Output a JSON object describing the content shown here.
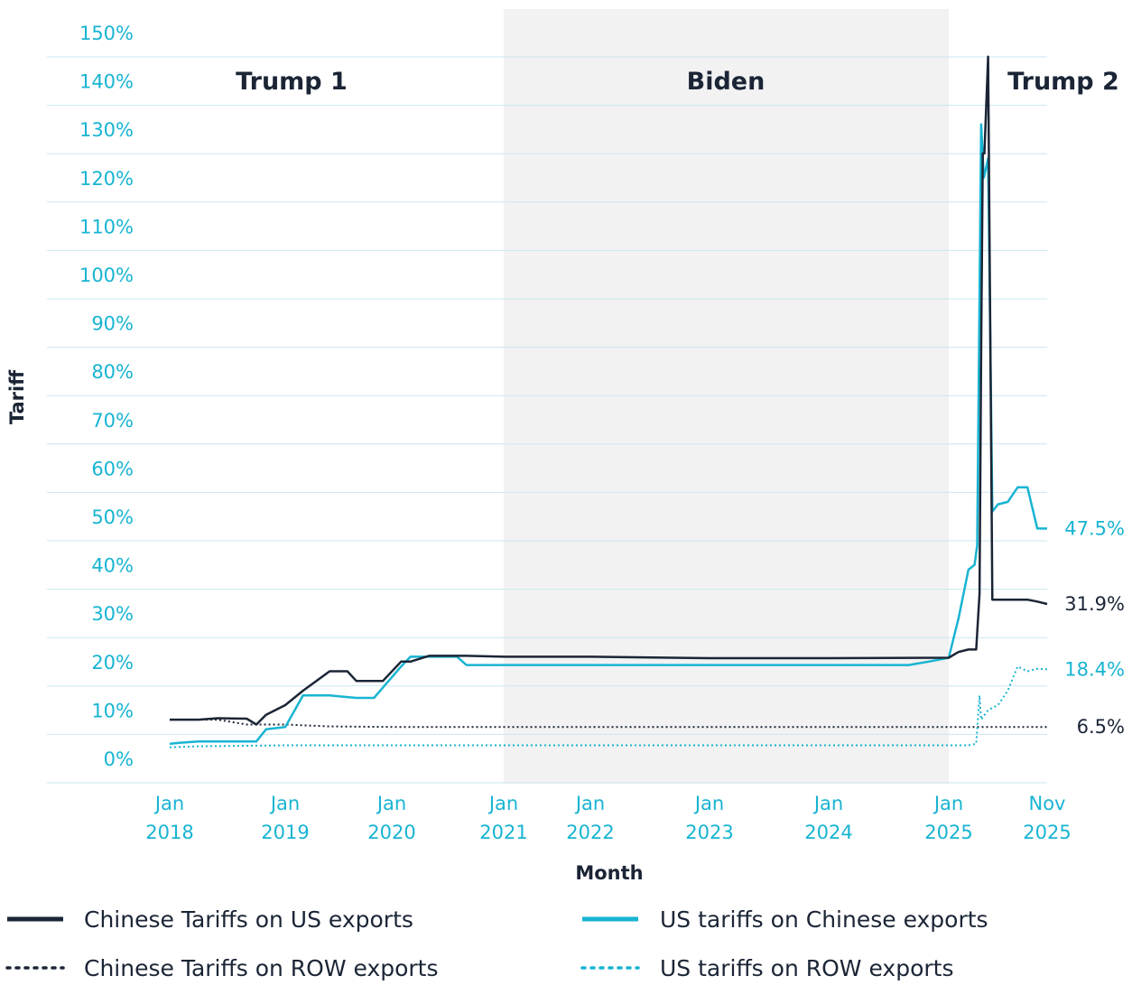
{
  "chart_data": {
    "type": "line",
    "title": "",
    "xlabel": "Month",
    "ylabel": "Tariff",
    "ylim": [
      0,
      150
    ],
    "y_ticks": [
      "0%",
      "10%",
      "20%",
      "30%",
      "40%",
      "50%",
      "60%",
      "70%",
      "80%",
      "90%",
      "100%",
      "110%",
      "120%",
      "130%",
      "140%",
      "150%"
    ],
    "x_ticks": [
      {
        "date": "2018-01",
        "line1": "Jan",
        "line2": "2018"
      },
      {
        "date": "2019-01",
        "line1": "Jan",
        "line2": "2019"
      },
      {
        "date": "2020-01",
        "line1": "Jan",
        "line2": "2020"
      },
      {
        "date": "2021-01",
        "line1": "Jan",
        "line2": "2021"
      },
      {
        "date": "2022-01",
        "line1": "Jan",
        "line2": "2022"
      },
      {
        "date": "2023-01",
        "line1": "Jan",
        "line2": "2023"
      },
      {
        "date": "2024-01",
        "line1": "Jan",
        "line2": "2024"
      },
      {
        "date": "2025-01",
        "line1": "Jan",
        "line2": "2025"
      },
      {
        "date": "2025-11",
        "line1": "Nov",
        "line2": "2025"
      }
    ],
    "grid": "horizontal",
    "shaded_periods": [
      {
        "label": "Trump 1",
        "start": "2018-01",
        "end": "2021-01",
        "shaded": false
      },
      {
        "label": "Biden",
        "start": "2021-01",
        "end": "2025-01",
        "shaded": true
      },
      {
        "label": "Trump 2",
        "start": "2025-01",
        "end": "2025-11",
        "shaded": false
      }
    ],
    "colors": {
      "navy": "#1b2536",
      "cyan": "#18b4d2",
      "shade": "#f2f2f2",
      "grid": "#c9e7ef"
    },
    "series": [
      {
        "name": "Chinese Tariffs on US exports",
        "color": "#1b2536",
        "style": "solid",
        "end_label": "31.9%",
        "points": [
          [
            "2018-01",
            8
          ],
          [
            "2018-04",
            8
          ],
          [
            "2018-06",
            8.3
          ],
          [
            "2018-09",
            8.2
          ],
          [
            "2018-10",
            7
          ],
          [
            "2018-11",
            9
          ],
          [
            "2019-01",
            11
          ],
          [
            "2019-03",
            14
          ],
          [
            "2019-06",
            18
          ],
          [
            "2019-08",
            18
          ],
          [
            "2019-09",
            16
          ],
          [
            "2019-12",
            16
          ],
          [
            "2020-02",
            20
          ],
          [
            "2020-03",
            20
          ],
          [
            "2020-05",
            21.2
          ],
          [
            "2020-07",
            21.2
          ],
          [
            "2020-09",
            21.2
          ],
          [
            "2021-01",
            21
          ],
          [
            "2022-01",
            21
          ],
          [
            "2023-01",
            20.7
          ],
          [
            "2024-01",
            20.7
          ],
          [
            "2025-01",
            20.8
          ],
          [
            "2025-02",
            22
          ],
          [
            "2025-03",
            22.5
          ],
          [
            "2025-03-25",
            22.5
          ],
          [
            "2025-04-05",
            34
          ],
          [
            "2025-04-10",
            84
          ],
          [
            "2025-04-15",
            125
          ],
          [
            "2025-04-20",
            125
          ],
          [
            "2025-05",
            145
          ],
          [
            "2025-05-14",
            32.8
          ],
          [
            "2025-09",
            32.8
          ],
          [
            "2025-10",
            32.4
          ],
          [
            "2025-11",
            31.9
          ]
        ]
      },
      {
        "name": "US tariffs on Chinese exports",
        "color": "#18b4d2",
        "style": "solid",
        "end_label": "47.5%",
        "points": [
          [
            "2018-01",
            3
          ],
          [
            "2018-02",
            3.2
          ],
          [
            "2018-04",
            3.5
          ],
          [
            "2018-10",
            3.5
          ],
          [
            "2018-11",
            6
          ],
          [
            "2019-01",
            6.5
          ],
          [
            "2019-03",
            13
          ],
          [
            "2019-06",
            13
          ],
          [
            "2019-09",
            12.5
          ],
          [
            "2019-11",
            12.5
          ],
          [
            "2020-02",
            19
          ],
          [
            "2020-03",
            21
          ],
          [
            "2020-06",
            21
          ],
          [
            "2020-08",
            21
          ],
          [
            "2020-09",
            19.3
          ],
          [
            "2021-01",
            19.3
          ],
          [
            "2022-01",
            19.3
          ],
          [
            "2023-01",
            19.3
          ],
          [
            "2024-01",
            19.3
          ],
          [
            "2024-09",
            19.3
          ],
          [
            "2024-11",
            20
          ],
          [
            "2025-01",
            20.8
          ],
          [
            "2025-02",
            29
          ],
          [
            "2025-03",
            39
          ],
          [
            "2025-03-20",
            40
          ],
          [
            "2025-03-28",
            44
          ],
          [
            "2025-04-10",
            131
          ],
          [
            "2025-04-18",
            120
          ],
          [
            "2025-04-25",
            122
          ],
          [
            "2025-05",
            124
          ],
          [
            "2025-05-14",
            51
          ],
          [
            "2025-06",
            52.5
          ],
          [
            "2025-07",
            53
          ],
          [
            "2025-08",
            56
          ],
          [
            "2025-09",
            56
          ],
          [
            "2025-10",
            47.5
          ],
          [
            "2025-11",
            47.5
          ]
        ]
      },
      {
        "name": "Chinese Tariffs on ROW exports",
        "color": "#1b2536",
        "style": "dotted",
        "end_label": "6.5%",
        "points": [
          [
            "2018-01",
            8
          ],
          [
            "2018-04",
            8
          ],
          [
            "2018-06",
            8
          ],
          [
            "2018-09",
            7
          ],
          [
            "2019-01",
            7
          ],
          [
            "2019-06",
            6.6
          ],
          [
            "2020-01",
            6.5
          ],
          [
            "2021-01",
            6.5
          ],
          [
            "2022-01",
            6.5
          ],
          [
            "2023-01",
            6.5
          ],
          [
            "2024-01",
            6.5
          ],
          [
            "2025-01",
            6.5
          ],
          [
            "2025-11",
            6.5
          ]
        ]
      },
      {
        "name": "US tariffs on ROW exports",
        "color": "#18b4d2",
        "style": "dotted",
        "end_label": "18.4%",
        "points": [
          [
            "2018-01",
            2.3
          ],
          [
            "2018-04",
            2.5
          ],
          [
            "2019-01",
            2.7
          ],
          [
            "2020-01",
            2.7
          ],
          [
            "2021-01",
            2.7
          ],
          [
            "2022-01",
            2.7
          ],
          [
            "2023-01",
            2.7
          ],
          [
            "2024-01",
            2.7
          ],
          [
            "2025-01",
            2.7
          ],
          [
            "2025-03",
            2.7
          ],
          [
            "2025-03-25",
            3
          ],
          [
            "2025-04-05",
            13
          ],
          [
            "2025-04-10",
            8
          ],
          [
            "2025-05",
            10
          ],
          [
            "2025-06",
            11
          ],
          [
            "2025-07",
            14
          ],
          [
            "2025-08",
            19
          ],
          [
            "2025-09",
            18
          ],
          [
            "2025-10",
            18.5
          ],
          [
            "2025-11",
            18.4
          ]
        ]
      }
    ]
  }
}
